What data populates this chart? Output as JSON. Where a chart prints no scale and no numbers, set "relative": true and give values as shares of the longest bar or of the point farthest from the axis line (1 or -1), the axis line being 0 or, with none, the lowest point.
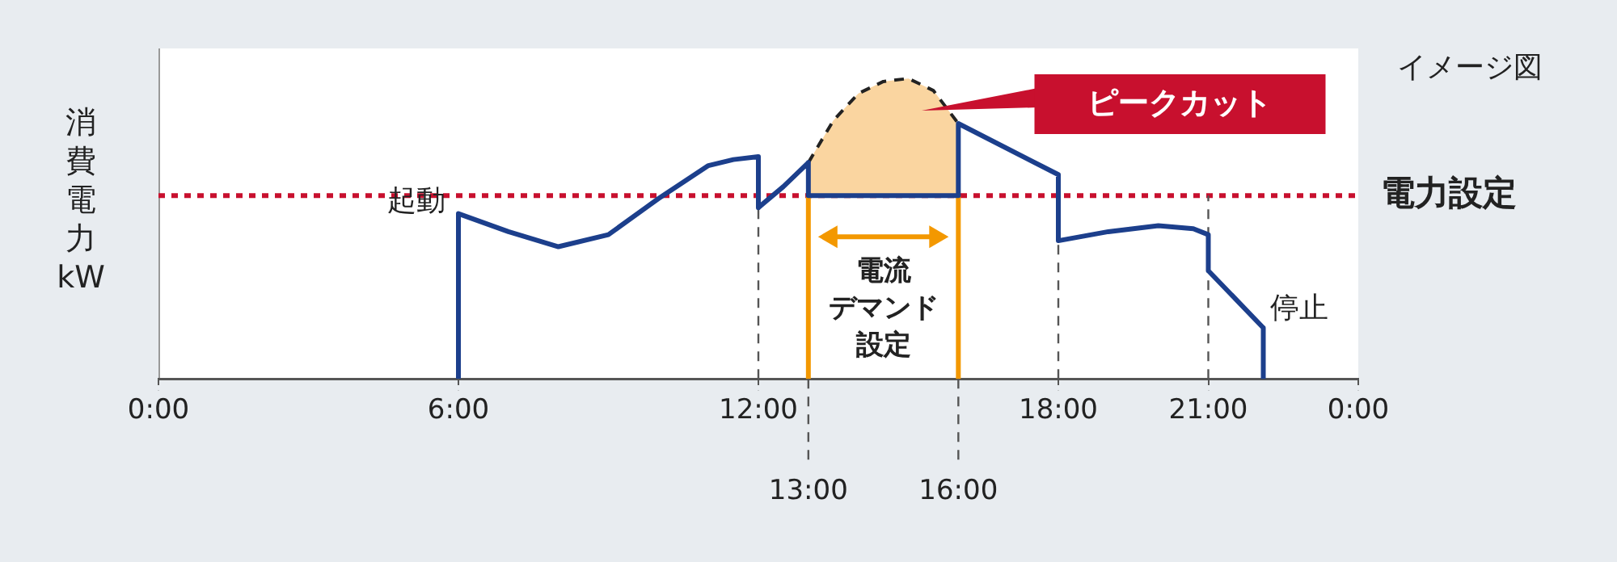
{
  "chart_data": {
    "type": "line",
    "relative": true,
    "ylabel": "消費電力\nkW",
    "xlim": [
      0,
      24
    ],
    "xticks": [
      {
        "value": 0,
        "label": "0:00"
      },
      {
        "value": 6,
        "label": "6:00"
      },
      {
        "value": 12,
        "label": "12:00"
      },
      {
        "value": 18,
        "label": "18:00"
      },
      {
        "value": 21,
        "label": "21:00"
      },
      {
        "value": 24,
        "label": "0:00"
      }
    ],
    "marker": "none",
    "series": [
      {
        "type": "line",
        "color": "#1c3f8c",
        "x": [
          6,
          6,
          7,
          8,
          9,
          10,
          11,
          11.5,
          12,
          12,
          12.5,
          13,
          13,
          16,
          16,
          18,
          18,
          19,
          20,
          20.7,
          21,
          21,
          22.1,
          22.1
        ],
        "values": [
          0,
          0.55,
          0.49,
          0.44,
          0.48,
          0.6,
          0.71,
          0.73,
          0.74,
          0.57,
          0.64,
          0.72,
          0.61,
          0.61,
          0.85,
          0.68,
          0.46,
          0.49,
          0.51,
          0.5,
          0.48,
          0.36,
          0.17,
          0
        ]
      },
      {
        "type": "area",
        "color": "#fad5a0",
        "line_style": "dashed",
        "x": [
          13,
          13.5,
          14,
          14.5,
          15,
          15.5,
          16
        ],
        "values": [
          0.72,
          0.86,
          0.95,
          0.99,
          1.0,
          0.96,
          0.85
        ]
      }
    ],
    "ref_lines": [
      {
        "axis": "y",
        "value": 0.61,
        "label": "電力設定",
        "color": "#c8102e",
        "line_style": "dotted"
      },
      {
        "axis": "x",
        "value": 12,
        "color": "#555555",
        "line_style": "dashed"
      },
      {
        "axis": "x",
        "value": 13,
        "label": "13:00",
        "color": "#f39800",
        "line_style": "solid"
      },
      {
        "axis": "x",
        "value": 16,
        "label": "16:00",
        "color": "#f39800",
        "line_style": "solid"
      },
      {
        "axis": "x",
        "value": 18,
        "color": "#555555",
        "line_style": "dashed"
      },
      {
        "axis": "x",
        "value": 21,
        "color": "#555555",
        "line_style": "dashed"
      }
    ],
    "annotations": [
      "ピークカット",
      {
        "text": "起動",
        "x": 6,
        "y": 0.55
      },
      {
        "text": "停止",
        "x": 22.1,
        "y": 0.17
      },
      "電流デマンド設定",
      "イメージ図"
    ]
  }
}
